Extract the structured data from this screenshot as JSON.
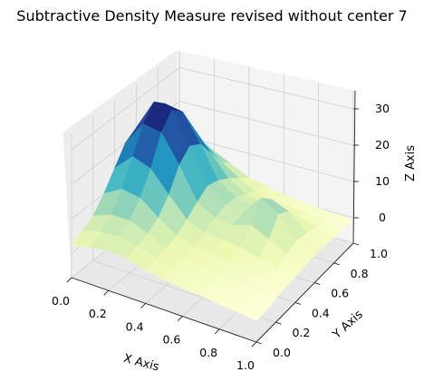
{
  "chart_data": {
    "type": "surface",
    "title": "Subtractive Density Measure revised without center 7",
    "xlabel": "X Axis",
    "ylabel": "Y Axis",
    "zlabel": "Z Axis",
    "xlim": [
      0.0,
      1.0
    ],
    "ylim": [
      0.0,
      1.0
    ],
    "zlim": [
      -7,
      35
    ],
    "x_ticks": [
      "0.0",
      "0.2",
      "0.4",
      "0.6",
      "0.8",
      "1.0"
    ],
    "y_ticks": [
      "0.0",
      "0.2",
      "0.4",
      "0.6",
      "0.8",
      "1.0"
    ],
    "z_ticks": [
      "0",
      "10",
      "20",
      "30"
    ],
    "z_tick_values": [
      0,
      10,
      20,
      30
    ],
    "colormap": "YlGnBu",
    "colormap_stops": [
      "#ffffd9",
      "#edf8b1",
      "#c7e9b4",
      "#7fcdbb",
      "#41b6c4",
      "#1d91c0",
      "#225ea8",
      "#253494",
      "#081d58"
    ],
    "grid": true,
    "surface": {
      "x": [
        0.0,
        0.1,
        0.2,
        0.3,
        0.4,
        0.5,
        0.6,
        0.7,
        0.8,
        0.9,
        1.0
      ],
      "y": [
        0.0,
        0.1,
        0.2,
        0.3,
        0.4,
        0.5,
        0.6,
        0.7,
        0.8,
        0.9,
        1.0
      ],
      "z": [
        [
          2.5,
          3.5,
          4.5,
          4.0,
          2.5,
          1.5,
          1.0,
          0.5,
          0.0,
          -0.5,
          -1.0
        ],
        [
          4.0,
          5.5,
          6.0,
          5.0,
          3.0,
          2.0,
          1.5,
          0.5,
          0.0,
          -0.5,
          -1.0
        ],
        [
          6.0,
          8.0,
          8.0,
          6.0,
          3.5,
          2.5,
          1.5,
          1.0,
          0.5,
          0.0,
          -0.5
        ],
        [
          10.0,
          13.0,
          12.0,
          8.0,
          4.5,
          3.0,
          2.5,
          2.0,
          1.0,
          0.5,
          0.0
        ],
        [
          15.0,
          20.0,
          18.0,
          12.0,
          6.5,
          4.5,
          4.0,
          3.5,
          2.0,
          1.0,
          0.0
        ],
        [
          20.0,
          27.0,
          26.0,
          18.0,
          9.0,
          6.0,
          5.5,
          7.0,
          4.5,
          2.0,
          0.5
        ],
        [
          22.0,
          31.0,
          30.0,
          21.0,
          11.0,
          7.0,
          6.5,
          12.0,
          9.0,
          3.0,
          0.5
        ],
        [
          20.0,
          28.0,
          27.0,
          19.0,
          10.0,
          6.5,
          6.0,
          9.0,
          7.0,
          2.5,
          0.5
        ],
        [
          16.0,
          21.0,
          20.0,
          14.0,
          8.0,
          5.0,
          4.0,
          4.0,
          3.0,
          1.5,
          0.0
        ],
        [
          11.0,
          14.0,
          13.0,
          9.0,
          5.5,
          3.0,
          2.0,
          1.5,
          1.0,
          0.5,
          0.0
        ],
        [
          7.0,
          9.0,
          8.0,
          5.5,
          3.0,
          2.0,
          1.0,
          0.5,
          0.0,
          -0.5,
          -1.0
        ]
      ]
    }
  }
}
